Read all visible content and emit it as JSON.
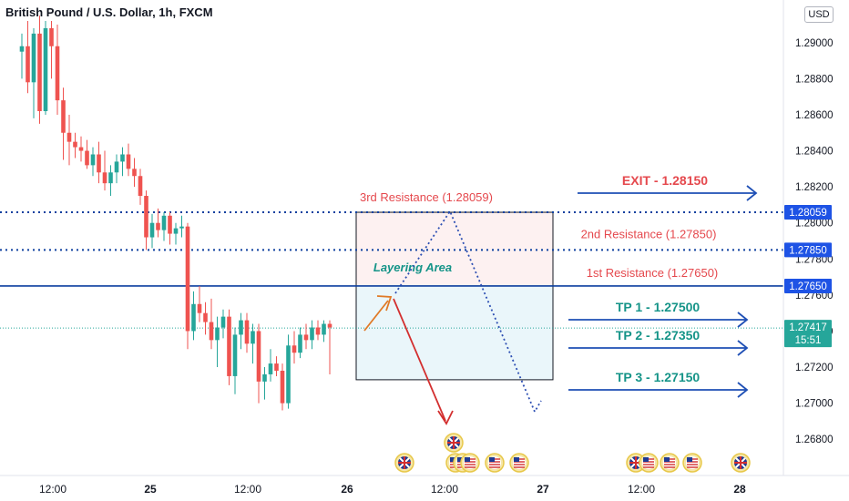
{
  "header": {
    "title": "British Pound / U.S. Dollar, 1h, FXCM",
    "currency_button": "USD"
  },
  "colors": {
    "up": "#26a69a",
    "down": "#ef5350",
    "blue_line": "#0d3f9f",
    "arrow_blue": "#1e4fb5",
    "resistance_text": "#e5484d",
    "tp_text": "#159488",
    "exit_text": "#e5484d",
    "price_tag": "#1e53e5",
    "current_tag": "#26a69a"
  },
  "chart_data": {
    "type": "candlestick",
    "symbol": "GBPUSD",
    "y_axis": {
      "ticks": [
        "1.29000",
        "1.28800",
        "1.28600",
        "1.28400",
        "1.28200",
        "1.28000",
        "1.27800",
        "1.27600",
        "1.27400",
        "1.27200",
        "1.27000",
        "1.26800"
      ],
      "ylim": [
        1.267,
        1.291
      ]
    },
    "x_axis": {
      "ticks": [
        "12:00",
        "25",
        "12:00",
        "26",
        "12:00",
        "27",
        "12:00",
        "28"
      ]
    },
    "candles": [
      {
        "o": 1.2895,
        "h": 1.2905,
        "l": 1.288,
        "c": 1.2898
      },
      {
        "o": 1.2898,
        "h": 1.2912,
        "l": 1.2872,
        "c": 1.2878
      },
      {
        "o": 1.2878,
        "h": 1.2908,
        "l": 1.2858,
        "c": 1.2905
      },
      {
        "o": 1.2905,
        "h": 1.2915,
        "l": 1.2855,
        "c": 1.2862
      },
      {
        "o": 1.2862,
        "h": 1.2912,
        "l": 1.286,
        "c": 1.2908
      },
      {
        "o": 1.2908,
        "h": 1.2912,
        "l": 1.288,
        "c": 1.2898
      },
      {
        "o": 1.2898,
        "h": 1.291,
        "l": 1.286,
        "c": 1.2868
      },
      {
        "o": 1.2868,
        "h": 1.2875,
        "l": 1.2835,
        "c": 1.285
      },
      {
        "o": 1.285,
        "h": 1.286,
        "l": 1.2832,
        "c": 1.2845
      },
      {
        "o": 1.2845,
        "h": 1.285,
        "l": 1.2836,
        "c": 1.2842
      },
      {
        "o": 1.2842,
        "h": 1.2848,
        "l": 1.2834,
        "c": 1.284
      },
      {
        "o": 1.284,
        "h": 1.2846,
        "l": 1.283,
        "c": 1.2832
      },
      {
        "o": 1.2832,
        "h": 1.2842,
        "l": 1.2826,
        "c": 1.2838
      },
      {
        "o": 1.2838,
        "h": 1.2845,
        "l": 1.2822,
        "c": 1.2828
      },
      {
        "o": 1.2828,
        "h": 1.284,
        "l": 1.2818,
        "c": 1.2822
      },
      {
        "o": 1.2822,
        "h": 1.2832,
        "l": 1.2815,
        "c": 1.2828
      },
      {
        "o": 1.2828,
        "h": 1.2838,
        "l": 1.2822,
        "c": 1.2834
      },
      {
        "o": 1.2834,
        "h": 1.2842,
        "l": 1.2826,
        "c": 1.2838
      },
      {
        "o": 1.2838,
        "h": 1.2844,
        "l": 1.2826,
        "c": 1.283
      },
      {
        "o": 1.283,
        "h": 1.2836,
        "l": 1.282,
        "c": 1.2826
      },
      {
        "o": 1.2826,
        "h": 1.283,
        "l": 1.281,
        "c": 1.2815
      },
      {
        "o": 1.2815,
        "h": 1.2818,
        "l": 1.2785,
        "c": 1.2792
      },
      {
        "o": 1.2792,
        "h": 1.2805,
        "l": 1.2786,
        "c": 1.28
      },
      {
        "o": 1.28,
        "h": 1.2808,
        "l": 1.2792,
        "c": 1.2796
      },
      {
        "o": 1.2796,
        "h": 1.2806,
        "l": 1.279,
        "c": 1.2804
      },
      {
        "o": 1.2804,
        "h": 1.2806,
        "l": 1.2788,
        "c": 1.2794
      },
      {
        "o": 1.2794,
        "h": 1.28,
        "l": 1.2788,
        "c": 1.2797
      },
      {
        "o": 1.2797,
        "h": 1.2804,
        "l": 1.2792,
        "c": 1.2798
      },
      {
        "o": 1.2798,
        "h": 1.28,
        "l": 1.273,
        "c": 1.274
      },
      {
        "o": 1.274,
        "h": 1.2762,
        "l": 1.2735,
        "c": 1.2755
      },
      {
        "o": 1.2755,
        "h": 1.2765,
        "l": 1.2745,
        "c": 1.275
      },
      {
        "o": 1.275,
        "h": 1.2756,
        "l": 1.2738,
        "c": 1.2745
      },
      {
        "o": 1.2745,
        "h": 1.2758,
        "l": 1.273,
        "c": 1.2735
      },
      {
        "o": 1.2735,
        "h": 1.2748,
        "l": 1.272,
        "c": 1.2742
      },
      {
        "o": 1.2742,
        "h": 1.2752,
        "l": 1.2736,
        "c": 1.2748
      },
      {
        "o": 1.2748,
        "h": 1.2752,
        "l": 1.271,
        "c": 1.2715
      },
      {
        "o": 1.2715,
        "h": 1.2742,
        "l": 1.2705,
        "c": 1.2738
      },
      {
        "o": 1.2738,
        "h": 1.275,
        "l": 1.273,
        "c": 1.2746
      },
      {
        "o": 1.2746,
        "h": 1.275,
        "l": 1.2728,
        "c": 1.2733
      },
      {
        "o": 1.2733,
        "h": 1.2744,
        "l": 1.2722,
        "c": 1.274
      },
      {
        "o": 1.274,
        "h": 1.2744,
        "l": 1.27,
        "c": 1.2712
      },
      {
        "o": 1.2712,
        "h": 1.272,
        "l": 1.2702,
        "c": 1.2716
      },
      {
        "o": 1.2716,
        "h": 1.273,
        "l": 1.2712,
        "c": 1.2722
      },
      {
        "o": 1.2722,
        "h": 1.2726,
        "l": 1.2715,
        "c": 1.2718
      },
      {
        "o": 1.2718,
        "h": 1.2722,
        "l": 1.2696,
        "c": 1.27
      },
      {
        "o": 1.27,
        "h": 1.2738,
        "l": 1.2697,
        "c": 1.2732
      },
      {
        "o": 1.2732,
        "h": 1.274,
        "l": 1.2722,
        "c": 1.2728
      },
      {
        "o": 1.2728,
        "h": 1.2742,
        "l": 1.2725,
        "c": 1.2738
      },
      {
        "o": 1.2738,
        "h": 1.2744,
        "l": 1.273,
        "c": 1.2735
      },
      {
        "o": 1.2735,
        "h": 1.2746,
        "l": 1.273,
        "c": 1.2742
      },
      {
        "o": 1.2742,
        "h": 1.2746,
        "l": 1.2735,
        "c": 1.2738
      },
      {
        "o": 1.2738,
        "h": 1.2746,
        "l": 1.2734,
        "c": 1.2744
      },
      {
        "o": 1.2744,
        "h": 1.2746,
        "l": 1.2716,
        "c": 1.2742
      }
    ],
    "levels": [
      {
        "name": "3rd Resistance",
        "price": 1.28059,
        "label": "3rd Resistance (1.28059)",
        "tag": "1.28059",
        "style": "dotted"
      },
      {
        "name": "2nd Resistance",
        "price": 1.2785,
        "label": "2nd Resistance (1.27850)",
        "tag": "1.27850",
        "style": "dotted"
      },
      {
        "name": "1st Resistance",
        "price": 1.2765,
        "label": "1st Resistance (1.27650)",
        "tag": "1.27650",
        "style": "solid"
      }
    ],
    "current_price": {
      "price": 1.27417,
      "tag": "1.27417",
      "countdown": "15:51"
    },
    "targets": [
      {
        "label": "EXIT - 1.28150",
        "price": 1.2815,
        "kind": "exit"
      },
      {
        "label": "TP 1 - 1.27500",
        "price": 1.275,
        "kind": "tp"
      },
      {
        "label": "TP 2 - 1.27350",
        "price": 1.2735,
        "kind": "tp"
      },
      {
        "label": "TP 3 - 1.27150",
        "price": 1.2715,
        "kind": "tp"
      }
    ],
    "zone": {
      "top": 1.28059,
      "mid": 1.2765,
      "bottom": 1.2713,
      "label": "Layering Area"
    },
    "events": [
      {
        "flag": "gb"
      },
      {
        "flag": "gb"
      },
      {
        "flag": "us"
      },
      {
        "flag": "us"
      },
      {
        "flag": "us"
      },
      {
        "flag": "us"
      },
      {
        "flag": "gb"
      },
      {
        "flag": "us"
      },
      {
        "flag": "us"
      },
      {
        "flag": "us"
      },
      {
        "flag": "gb"
      }
    ]
  }
}
